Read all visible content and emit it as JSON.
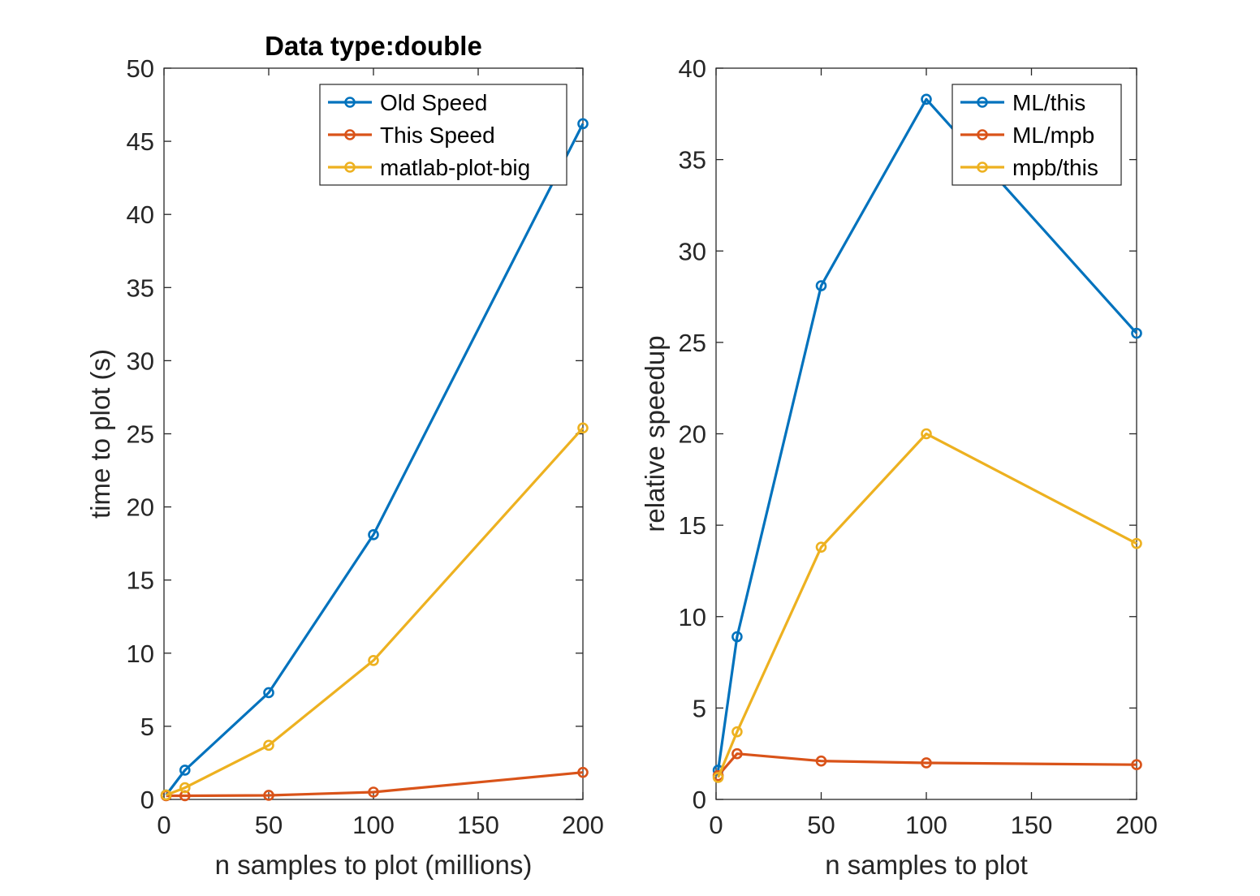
{
  "colors": {
    "series": [
      "#0072BD",
      "#D95319",
      "#EDB120"
    ],
    "axis": "#262626",
    "background": "#ffffff"
  },
  "chart_data": [
    {
      "type": "line",
      "title": "Data type:double",
      "xlabel": "n samples to plot (millions)",
      "ylabel": "time to plot (s)",
      "xlim": [
        0,
        200
      ],
      "ylim": [
        0,
        50
      ],
      "xticks": [
        "0",
        "50",
        "100",
        "150",
        "200"
      ],
      "yticks": [
        "0",
        "5",
        "10",
        "15",
        "20",
        "25",
        "30",
        "35",
        "40",
        "45",
        "50"
      ],
      "legend_position": "top-right",
      "marker": "circle",
      "grid": false,
      "series": [
        {
          "name": "Old Speed",
          "x": [
            1,
            10,
            50,
            100,
            200
          ],
          "y": [
            0.3,
            2.0,
            7.3,
            18.1,
            46.2
          ]
        },
        {
          "name": "This Speed",
          "x": [
            1,
            10,
            50,
            100,
            200
          ],
          "y": [
            0.25,
            0.25,
            0.28,
            0.5,
            1.85
          ]
        },
        {
          "name": "matlab-plot-big",
          "x": [
            1,
            10,
            50,
            100,
            200
          ],
          "y": [
            0.3,
            0.8,
            3.7,
            9.5,
            25.4
          ]
        }
      ]
    },
    {
      "type": "line",
      "title": "",
      "xlabel": "n samples to plot",
      "ylabel": "relative speedup",
      "xlim": [
        0,
        200
      ],
      "ylim": [
        0,
        40
      ],
      "xticks": [
        "0",
        "50",
        "100",
        "150",
        "200"
      ],
      "yticks": [
        "0",
        "5",
        "10",
        "15",
        "20",
        "25",
        "30",
        "35",
        "40"
      ],
      "legend_position": "top-right",
      "marker": "circle",
      "grid": false,
      "series": [
        {
          "name": "ML/this",
          "x": [
            1,
            10,
            50,
            100,
            200
          ],
          "y": [
            1.6,
            8.9,
            28.1,
            38.3,
            25.5
          ]
        },
        {
          "name": "ML/mpb",
          "x": [
            1,
            10,
            50,
            100,
            200
          ],
          "y": [
            1.3,
            2.5,
            2.1,
            2.0,
            1.9
          ]
        },
        {
          "name": "mpb/this",
          "x": [
            1,
            10,
            50,
            100,
            200
          ],
          "y": [
            1.2,
            3.7,
            13.8,
            20.0,
            14.0
          ]
        }
      ]
    }
  ]
}
